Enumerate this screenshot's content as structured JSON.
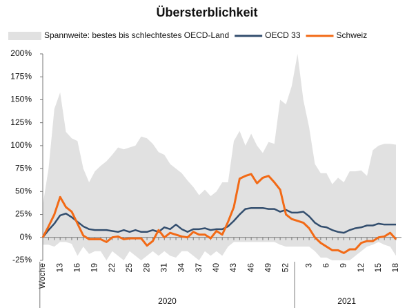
{
  "chart_data": {
    "type": "line",
    "title": "Übersterblichkeit",
    "categories": [
      "Woche",
      null,
      null,
      "13",
      null,
      null,
      "16",
      null,
      null,
      "19",
      null,
      null,
      "22",
      null,
      null,
      "25",
      null,
      null,
      "28",
      null,
      null,
      "31",
      null,
      null,
      "34",
      null,
      null,
      "37",
      null,
      null,
      "40",
      null,
      null,
      "43",
      null,
      null,
      "46",
      null,
      null,
      "49",
      null,
      null,
      "52",
      null,
      null,
      null,
      "3",
      null,
      null,
      "6",
      null,
      null,
      "9",
      null,
      null,
      "12",
      null,
      null,
      "15",
      null,
      null,
      "18"
    ],
    "x_groups": [
      {
        "label": "2020",
        "start": 0,
        "end": 43
      },
      {
        "label": "2021",
        "start": 44,
        "end": 61
      }
    ],
    "range": {
      "name": "Spannweite: bestes bis schlechtestes OECD-Land",
      "color": "#e1e1e1",
      "upper": [
        35,
        75,
        140,
        158,
        115,
        108,
        105,
        75,
        60,
        72,
        78,
        83,
        90,
        98,
        96,
        98,
        100,
        110,
        108,
        102,
        93,
        90,
        80,
        75,
        70,
        62,
        55,
        46,
        52,
        45,
        50,
        60,
        60,
        105,
        116,
        100,
        113,
        100,
        92,
        104,
        102,
        150,
        145,
        165,
        200,
        150,
        120,
        80,
        70,
        70,
        58,
        65,
        60,
        72,
        72,
        73,
        67,
        95,
        100,
        102,
        102,
        101
      ],
      "lower": [
        -8,
        -8,
        -10,
        -5,
        -5,
        -7,
        -20,
        -10,
        -18,
        -15,
        -15,
        -25,
        -15,
        -20,
        -25,
        -15,
        -20,
        -25,
        -20,
        -15,
        -20,
        -15,
        -20,
        -22,
        -15,
        -15,
        -20,
        -25,
        -15,
        -20,
        -15,
        -20,
        -10,
        -5,
        -5,
        -5,
        -5,
        -5,
        -5,
        -5,
        -5,
        -8,
        -10,
        -10,
        -10,
        -10,
        -10,
        -15,
        -22,
        -22,
        -25,
        -25,
        -25,
        -25,
        -20,
        -15,
        -10,
        -8,
        -5,
        -8,
        -10,
        -20
      ]
    },
    "series": [
      {
        "name": "OECD 33",
        "color": "#334e6e",
        "values": [
          0,
          8,
          15,
          24,
          26,
          22,
          17,
          12,
          9,
          8,
          8,
          8,
          7,
          6,
          8,
          6,
          8,
          6,
          6,
          8,
          6,
          11,
          9,
          14,
          9,
          6,
          9,
          9,
          10,
          8,
          9,
          9,
          12,
          18,
          25,
          31,
          32,
          32,
          32,
          31,
          31,
          28,
          30,
          27,
          27,
          28,
          23,
          16,
          12,
          11,
          8,
          6,
          5,
          8,
          10,
          11,
          13,
          13,
          15,
          14,
          14,
          14
        ]
      },
      {
        "name": "Schweiz",
        "color": "#f26a16",
        "values": [
          0,
          12,
          25,
          44,
          33,
          28,
          15,
          2,
          -2,
          -2,
          -2,
          -5,
          0,
          1,
          -2,
          -1,
          -1,
          -1,
          -9,
          -4,
          8,
          0,
          5,
          3,
          1,
          0,
          6,
          3,
          3,
          -1,
          7,
          3,
          17,
          33,
          64,
          67,
          69,
          59,
          65,
          67,
          60,
          52,
          25,
          20,
          18,
          16,
          10,
          0,
          -6,
          -10,
          -14,
          -14,
          -17,
          -13,
          -13,
          -6,
          -4,
          -4,
          0,
          1,
          5,
          -2
        ]
      }
    ],
    "ylim": [
      -25,
      200
    ],
    "yticks": [
      {
        "value": -25,
        "label": "-25%"
      },
      {
        "value": 0,
        "label": "0%"
      },
      {
        "value": 25,
        "label": "25%"
      },
      {
        "value": 50,
        "label": "50%"
      },
      {
        "value": 75,
        "label": "75%"
      },
      {
        "value": 100,
        "label": "100%"
      },
      {
        "value": 125,
        "label": "125%"
      },
      {
        "value": 150,
        "label": "150%"
      },
      {
        "value": 175,
        "label": "175%"
      },
      {
        "value": 200,
        "label": "200%"
      }
    ],
    "grid": false
  }
}
